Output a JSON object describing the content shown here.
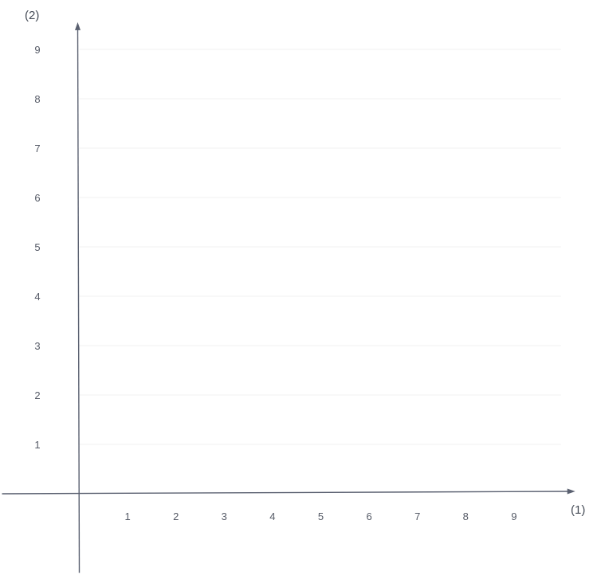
{
  "chart_data": {
    "type": "scatter",
    "title": "",
    "xlabel": "(1)",
    "ylabel": "(2)",
    "xlim": [
      -1.6,
      10.3
    ],
    "ylim": [
      -1.6,
      9.55
    ],
    "x_ticks": [
      "1",
      "2",
      "3",
      "4",
      "5",
      "6",
      "7",
      "8",
      "9"
    ],
    "y_ticks": [
      "1",
      "2",
      "3",
      "4",
      "5",
      "6",
      "7",
      "8",
      "9"
    ],
    "series": [],
    "grid": true,
    "legend": "none",
    "colors": {
      "axis": "#5a6070",
      "tick_text": "#555a66",
      "grid": "#f1f1f1"
    }
  }
}
